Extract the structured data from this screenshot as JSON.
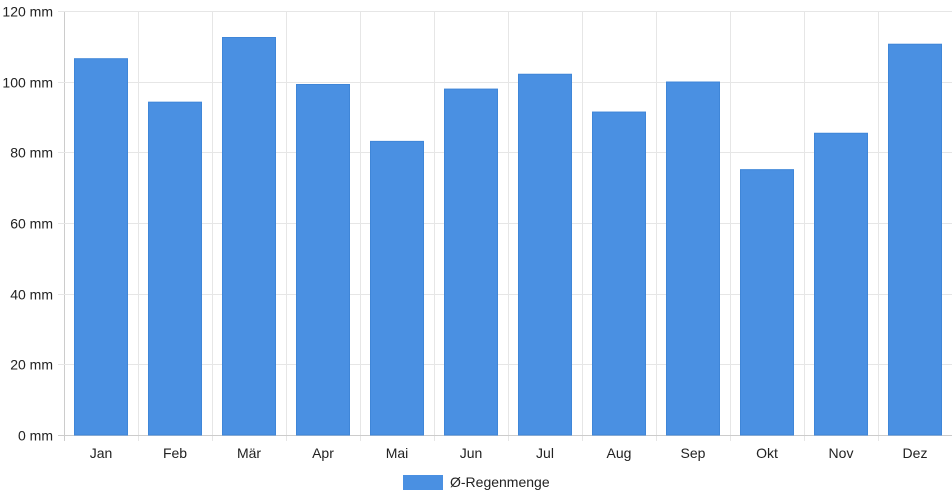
{
  "chart_data": {
    "type": "bar",
    "categories": [
      "Jan",
      "Feb",
      "Mär",
      "Apr",
      "Mai",
      "Jun",
      "Jul",
      "Aug",
      "Sep",
      "Okt",
      "Nov",
      "Dez"
    ],
    "series": [
      {
        "name": "Ø-Regenmenge",
        "color": "#4a90e2",
        "values": [
          106.5,
          94.2,
          112.5,
          99.2,
          83.1,
          97.9,
          102.1,
          91.4,
          99.9,
          75.1,
          85.4,
          110.6
        ]
      }
    ],
    "ylim": [
      0,
      120
    ],
    "yticks": [
      0,
      20,
      40,
      60,
      80,
      100,
      120
    ],
    "y_unit": " mm",
    "grid": true,
    "legend_position": "bottom"
  }
}
